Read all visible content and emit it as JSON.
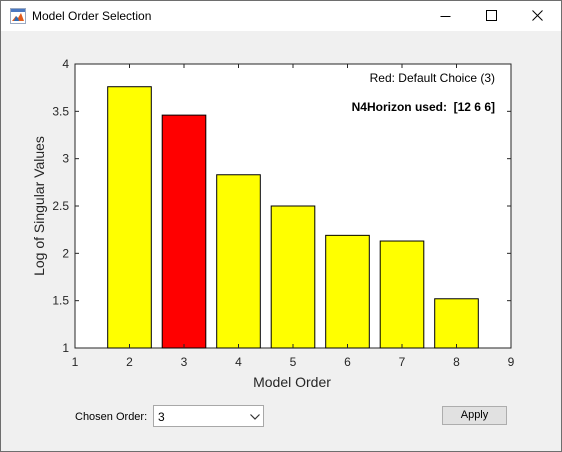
{
  "window": {
    "title": "Model Order Selection"
  },
  "chart_data": {
    "type": "bar",
    "categories": [
      "2",
      "3",
      "4",
      "5",
      "6",
      "7",
      "8"
    ],
    "x": [
      2,
      3,
      4,
      5,
      6,
      7,
      8
    ],
    "values": [
      3.76,
      3.46,
      2.83,
      2.5,
      2.19,
      2.13,
      1.52
    ],
    "colors": [
      "#ffff00",
      "#ff0000",
      "#ffff00",
      "#ffff00",
      "#ffff00",
      "#ffff00",
      "#ffff00"
    ],
    "highlighted_category": "3",
    "xlabel": "Model Order",
    "ylabel": "Log of Singular Values",
    "xlim": [
      1,
      9
    ],
    "ylim": [
      1,
      4
    ],
    "xticks": [
      "1",
      "2",
      "3",
      "4",
      "5",
      "6",
      "7",
      "8",
      "9"
    ],
    "yticks": [
      "1",
      "1.5",
      "2",
      "2.5",
      "3",
      "3.5",
      "4"
    ],
    "annotations": [
      "Red: Default Choice (3)",
      "N4Horizon used:  [12 6 6]"
    ],
    "grid": false
  },
  "controls": {
    "chosen_order_label": "Chosen Order:",
    "chosen_order_value": "3",
    "apply_label": "Apply"
  }
}
